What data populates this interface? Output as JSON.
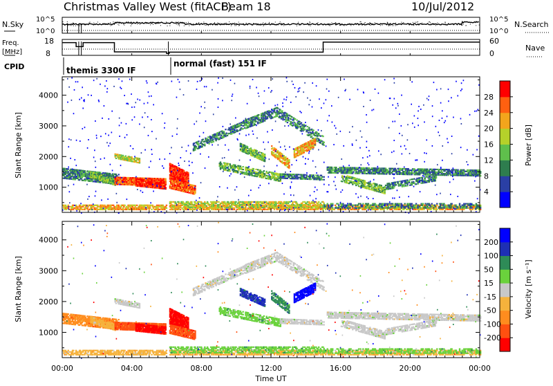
{
  "header": {
    "station": "Christmas Valley West (fitACF)",
    "beam": "Beam 18",
    "date": "10/Jul/2012"
  },
  "chart_data": [
    {
      "type": "line",
      "name": "noise-panel",
      "left_label": "N.Sky",
      "right_label": "N.Search",
      "left_ticks": [
        "10^5",
        "10^0"
      ],
      "right_ticks": [
        "10^5",
        "10^0"
      ],
      "scale": "log"
    },
    {
      "type": "line",
      "name": "frequency-panel",
      "left_label": "Freq. [MHz]",
      "right_label": "Nave",
      "left_ticks": [
        "18",
        "8"
      ],
      "right_ticks": [
        "60",
        "0"
      ],
      "ylim_freq": [
        8,
        18
      ],
      "ylim_nave": [
        0,
        60
      ],
      "freq_steps": [
        {
          "x": 0.0,
          "v": 16.0
        },
        {
          "x": 0.8,
          "v": 13.5
        },
        {
          "x": 1.2,
          "v": 16.0
        },
        {
          "x": 3.0,
          "v": 10.2
        },
        {
          "x": 6.0,
          "v": 9.2
        },
        {
          "x": 6.15,
          "v": 10.0
        },
        {
          "x": 15.0,
          "v": 16.3
        },
        {
          "x": 24.0,
          "v": 16.3
        }
      ]
    },
    {
      "type": "table",
      "name": "cpid-panel",
      "label": "CPID",
      "programs": [
        {
          "start": 0.0,
          "label": "themis 3300 IF"
        },
        {
          "start": 6.1,
          "label": "normal (fast) 151 IF"
        }
      ]
    },
    {
      "type": "heatmap",
      "name": "power-panel",
      "ylabel": "Slant Range [km]",
      "yticks": [
        1000,
        2000,
        3000,
        4000
      ],
      "ylim": [
        180,
        4600
      ],
      "xlim": [
        0,
        24
      ],
      "colorbar": {
        "label": "Power [dB]",
        "ticks": [
          "28",
          "24",
          "20",
          "16",
          "12",
          "8",
          "4"
        ],
        "range": [
          0,
          30
        ]
      },
      "colors": [
        "#0000ff",
        "#2a3fa5",
        "#2e7d4e",
        "#5fbf4c",
        "#b5d12a",
        "#f3a51c",
        "#ff6010",
        "#ff0000"
      ]
    },
    {
      "type": "heatmap",
      "name": "velocity-panel",
      "ylabel": "Slant Range [km]",
      "yticks": [
        1000,
        2000,
        3000,
        4000
      ],
      "ylim": [
        180,
        4600
      ],
      "xlim": [
        0,
        24
      ],
      "colorbar": {
        "label": "Velocity [m s⁻¹]",
        "ticks": [
          "200",
          "100",
          "50",
          "15",
          "-15",
          "-50",
          "-100",
          "-200"
        ],
        "range": [
          -250,
          250
        ]
      },
      "colors": [
        "#ff0000",
        "#ff5010",
        "#ff8c1e",
        "#f5b23c",
        "#c8c8c8",
        "#6ad23c",
        "#2e8b57",
        "#1e2fb4",
        "#0000ff"
      ]
    }
  ],
  "xaxis": {
    "label": "Time UT",
    "ticks": [
      "00:00",
      "04:00",
      "08:00",
      "12:00",
      "16:00",
      "20:00",
      "00:00"
    ]
  }
}
